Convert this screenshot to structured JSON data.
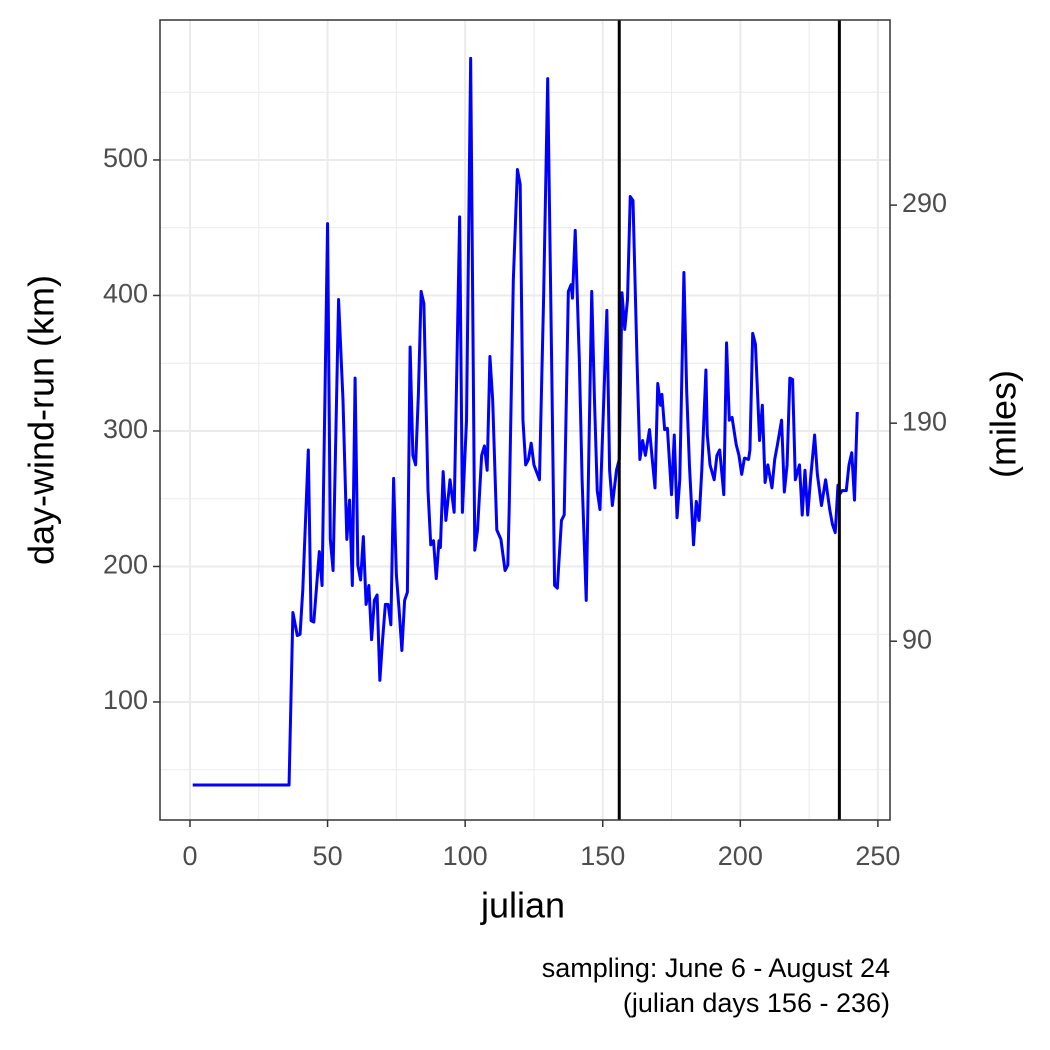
{
  "chart_data": {
    "type": "line",
    "xlabel": "julian",
    "ylabel": "day-wind-run (km)",
    "y2label": "(miles)",
    "caption": [
      "sampling: June 6 - August 24",
      "(julian days 156 - 236)"
    ],
    "color": "#0000ff",
    "vlines": [
      156,
      236
    ],
    "vline_color": "#000000",
    "grid": true,
    "xlim": [
      -10.9,
      254.4
    ],
    "xticks": [
      0,
      50,
      100,
      150,
      200,
      250
    ],
    "xminor": [
      25,
      75,
      125,
      175,
      225
    ],
    "ylim": [
      12.9,
      603.3
    ],
    "yticks": [
      100,
      200,
      300,
      400,
      500
    ],
    "yminor": [
      50,
      150,
      250,
      350,
      450,
      550
    ],
    "y2lim": [
      8.0,
      374.9
    ],
    "y2ticks": [
      90,
      190,
      290
    ],
    "x": [
      1,
      36,
      37.4,
      39,
      40,
      41,
      43,
      44,
      45,
      47,
      48,
      50,
      51,
      52,
      54,
      55.6,
      57,
      58,
      59,
      60,
      61,
      62,
      63,
      64,
      65,
      66,
      67,
      68,
      69,
      70,
      71,
      72,
      73,
      74,
      75,
      76,
      77,
      78,
      79,
      80,
      81,
      82,
      83,
      84,
      85,
      86.5,
      87.5,
      88.5,
      89.5,
      90.5,
      91,
      92,
      93,
      94.5,
      96,
      98,
      99,
      100.5,
      102,
      103.5,
      104.5,
      106,
      107,
      108,
      109,
      110,
      111.5,
      113,
      114.5,
      115.5,
      116,
      117.5,
      119,
      120,
      121,
      122,
      123,
      124,
      125,
      127,
      128.5,
      130,
      131.5,
      132.5,
      133.5,
      135,
      136,
      137.5,
      138.5,
      139,
      140,
      141.5,
      142.5,
      144,
      146,
      147,
      148,
      149,
      150,
      151.5,
      152.5,
      153.5,
      155,
      156,
      157,
      158,
      159,
      160,
      161,
      162.5,
      163.5,
      164.5,
      165.5,
      167,
      168,
      169,
      170,
      171,
      171.5,
      172.5,
      173.5,
      175,
      176,
      177,
      178,
      179.5,
      180.5,
      181.5,
      183,
      184,
      185,
      186,
      187.5,
      188,
      189,
      190.5,
      191.5,
      192.5,
      194,
      195,
      196,
      197,
      198.5,
      199.5,
      200.5,
      201.5,
      203,
      203.5,
      204.5,
      205.5,
      207,
      208,
      209,
      210,
      211.5,
      212.5,
      213.5,
      215,
      216,
      217,
      218,
      219,
      220,
      221.5,
      222.5,
      223.5,
      224.5,
      225.5,
      227,
      228,
      229.5,
      231,
      232.5,
      233.5,
      234.5,
      235.5,
      236,
      237,
      238.5,
      239.5,
      240.5,
      241.5,
      242.5
    ],
    "values": [
      38.7,
      38.7,
      166,
      149,
      150,
      183,
      286,
      160,
      159,
      211,
      186,
      453,
      220,
      197,
      397,
      323,
      220,
      249,
      186,
      339,
      201,
      190,
      222,
      172,
      186,
      146,
      175,
      179,
      116,
      146,
      172,
      172,
      157,
      265,
      194,
      168,
      138,
      175,
      181,
      362,
      282,
      275,
      327,
      403,
      394,
      256,
      216,
      219,
      191,
      219,
      214,
      270,
      234,
      264,
      240,
      458,
      240,
      308,
      575,
      212,
      227,
      282,
      289,
      271,
      355,
      323,
      227,
      220,
      197,
      201,
      242,
      411,
      493,
      482,
      308,
      275,
      279,
      291,
      275,
      264,
      397,
      560,
      341,
      186,
      184,
      234,
      238,
      403,
      408,
      398,
      448,
      352,
      264,
      175,
      403,
      323,
      256,
      242,
      301,
      389,
      271,
      245,
      271,
      279,
      402,
      375,
      397,
      473,
      470,
      349,
      279,
      293,
      282,
      301,
      279,
      258,
      335,
      319,
      327,
      301,
      302,
      253,
      297,
      236,
      264,
      417,
      330,
      275,
      216,
      248,
      234,
      271,
      345,
      297,
      275,
      264,
      282,
      286,
      253,
      365,
      308,
      310,
      290,
      282,
      268,
      280,
      279,
      286,
      372,
      364,
      293,
      319,
      262,
      275,
      258,
      279,
      290,
      308,
      255,
      275,
      339,
      338,
      264,
      275,
      238,
      271,
      238,
      264,
      297,
      268,
      245,
      264,
      242,
      231,
      225,
      260,
      253,
      256,
      256,
      275,
      284,
      249,
      314
    ]
  }
}
